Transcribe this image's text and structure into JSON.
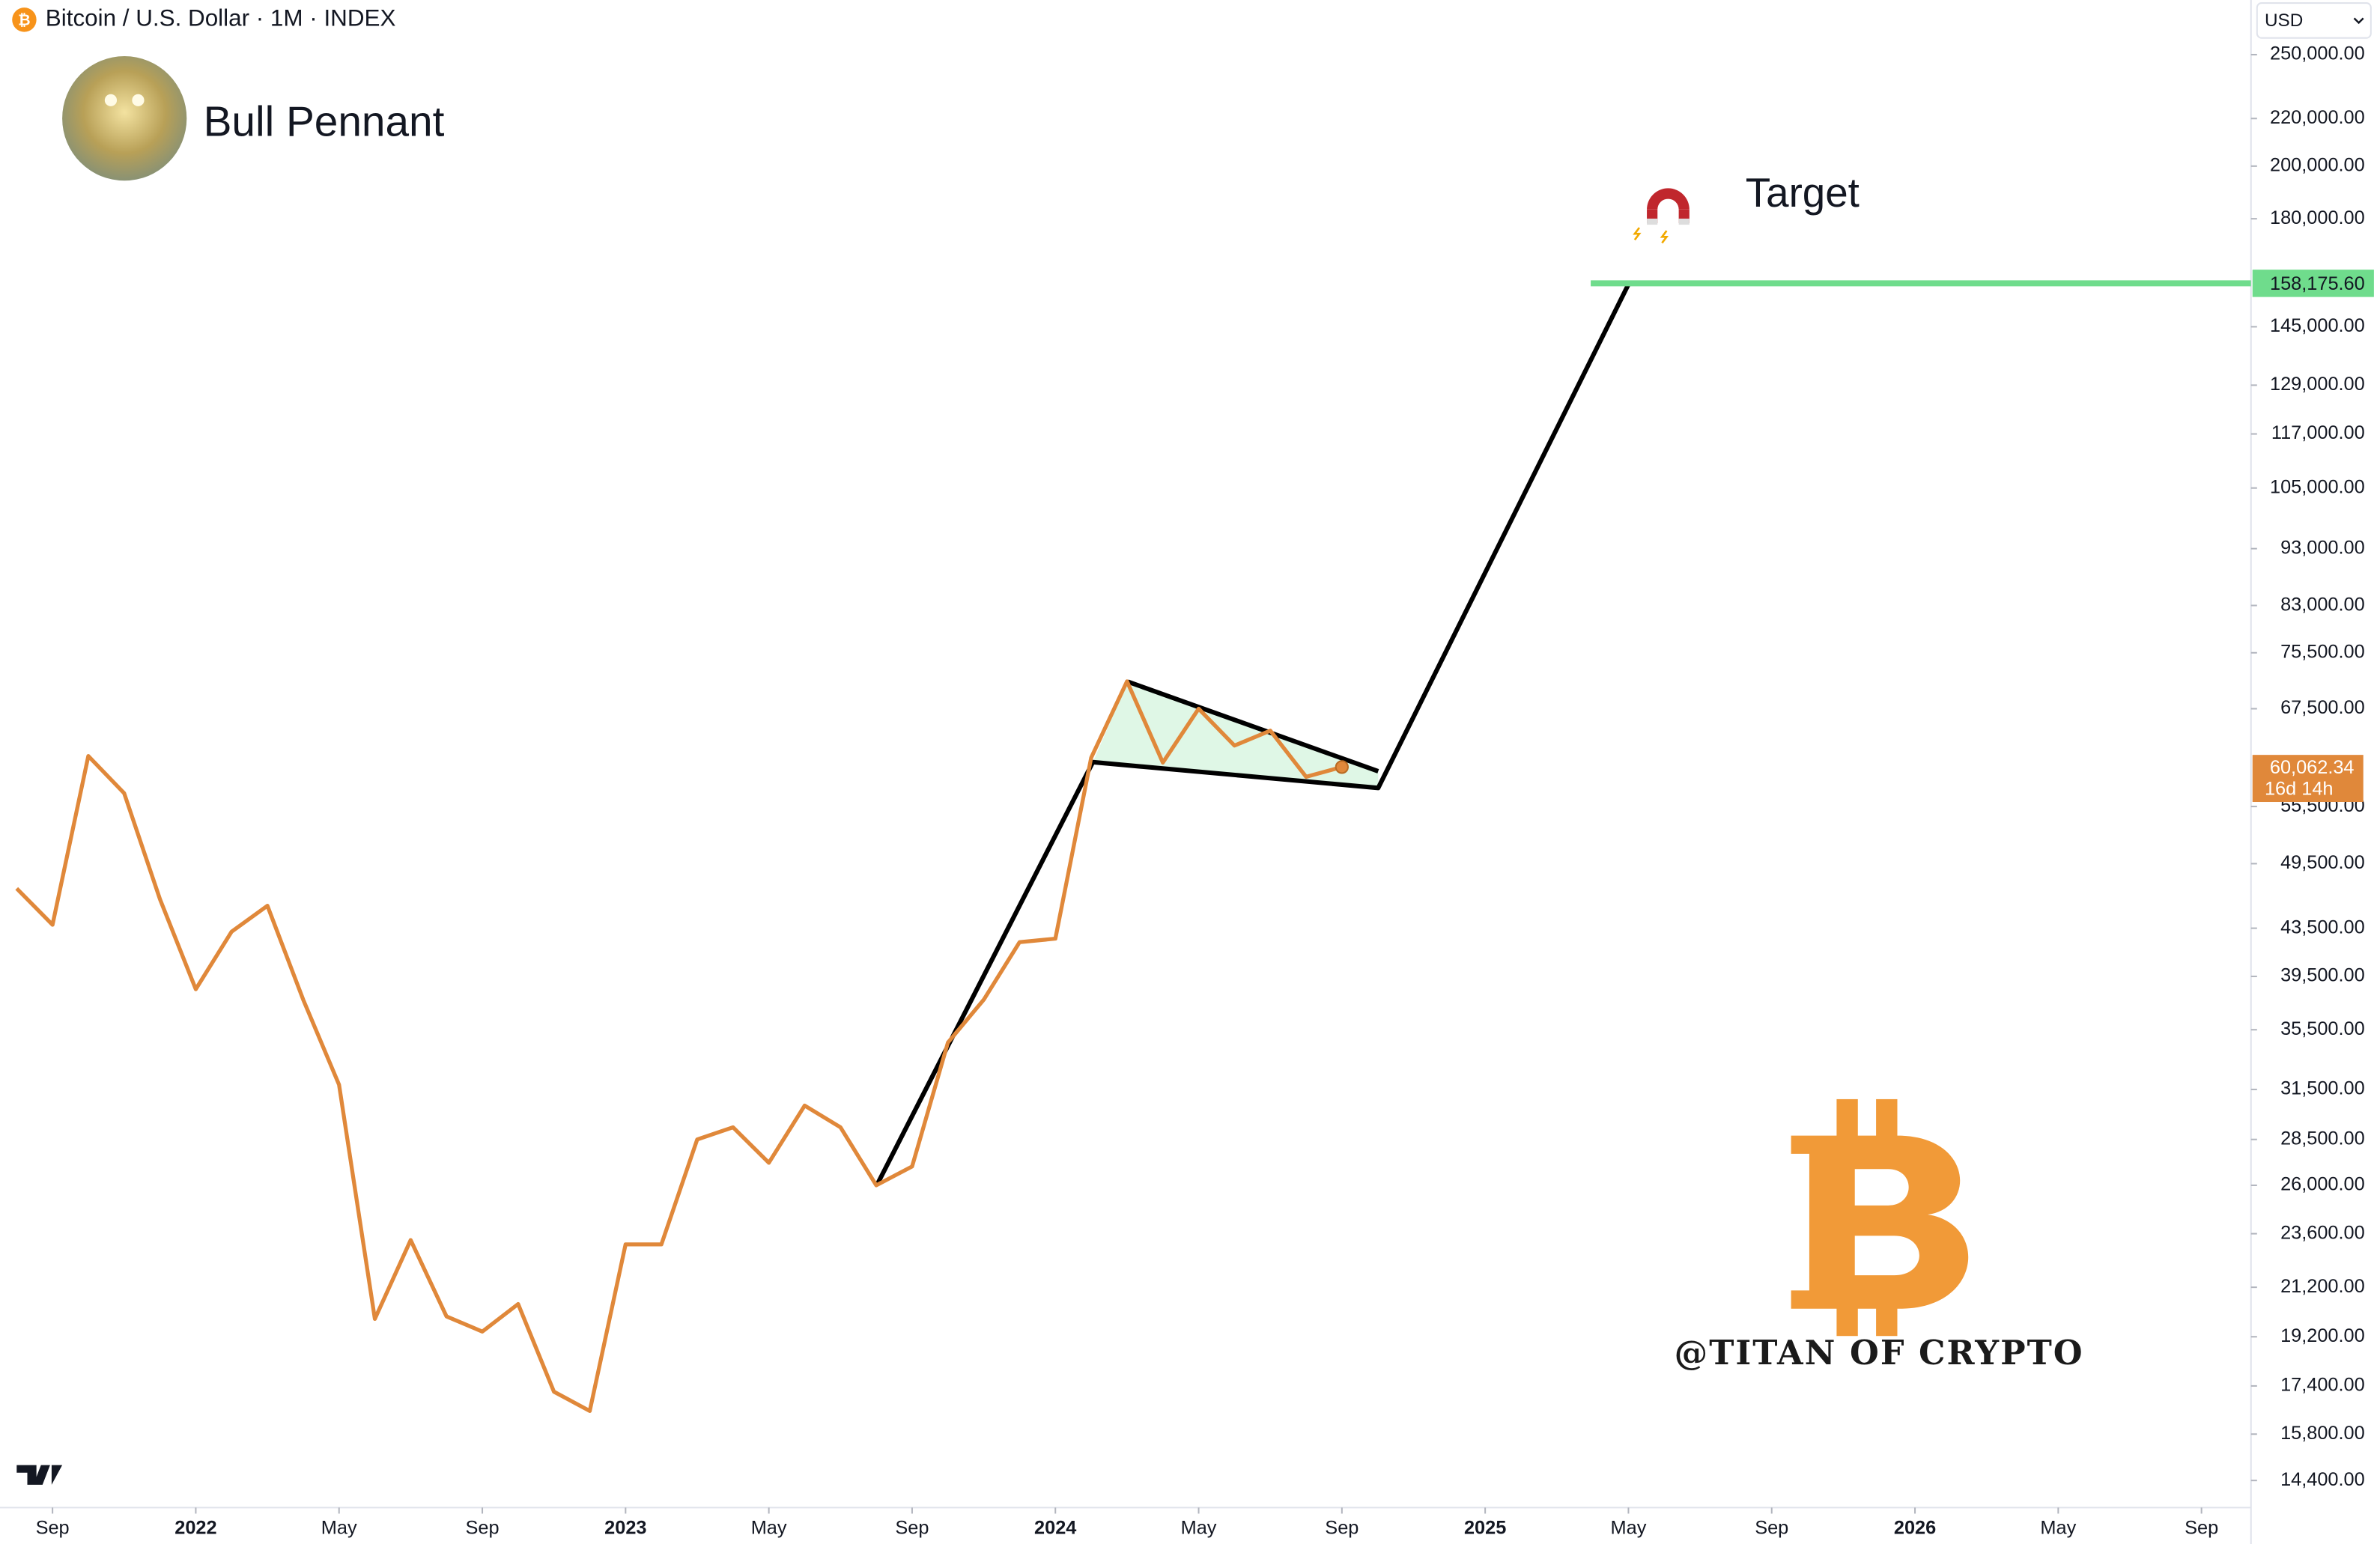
{
  "chart_data": {
    "type": "line",
    "title": "Bitcoin / U.S. Dollar · 1M · INDEX",
    "currency": "USD",
    "annotations": {
      "pattern": "Bull Pennant",
      "target": "Target",
      "watermark": "@TITAN OF CRYPTO"
    },
    "log_scale": true,
    "color": "#e0883a",
    "x": [
      "2021-08",
      "2021-09",
      "2021-10",
      "2021-11",
      "2021-12",
      "2022-01",
      "2022-02",
      "2022-03",
      "2022-04",
      "2022-05",
      "2022-06",
      "2022-07",
      "2022-08",
      "2022-09",
      "2022-10",
      "2022-11",
      "2022-12",
      "2023-01",
      "2023-02",
      "2023-03",
      "2023-04",
      "2023-05",
      "2023-06",
      "2023-07",
      "2023-08",
      "2023-09",
      "2023-10",
      "2023-11",
      "2023-12",
      "2024-01",
      "2024-02",
      "2024-03",
      "2024-04",
      "2024-05",
      "2024-06",
      "2024-07",
      "2024-08",
      "2024-09"
    ],
    "values": [
      47100,
      43800,
      61400,
      57000,
      46100,
      38500,
      43200,
      45500,
      37700,
      31800,
      19900,
      23300,
      20000,
      19400,
      20500,
      17200,
      16550,
      23100,
      23100,
      28500,
      29200,
      27200,
      30500,
      29200,
      26000,
      27000,
      34600,
      37700,
      42300,
      42600,
      61200,
      71300,
      60600,
      67500,
      62700,
      64600,
      58900,
      60062.34
    ],
    "xlim": [
      "2021-08",
      "2026-10"
    ],
    "xticks": [
      {
        "value": "2021-09",
        "label": "Sep"
      },
      {
        "value": "2022-01",
        "label": "2022"
      },
      {
        "value": "2022-05",
        "label": "May"
      },
      {
        "value": "2022-09",
        "label": "Sep"
      },
      {
        "value": "2023-01",
        "label": "2023"
      },
      {
        "value": "2023-05",
        "label": "May"
      },
      {
        "value": "2023-09",
        "label": "Sep"
      },
      {
        "value": "2024-01",
        "label": "2024"
      },
      {
        "value": "2024-05",
        "label": "May"
      },
      {
        "value": "2024-09",
        "label": "Sep"
      },
      {
        "value": "2025-01",
        "label": "2025"
      },
      {
        "value": "2025-05",
        "label": "May"
      },
      {
        "value": "2025-09",
        "label": "Sep"
      },
      {
        "value": "2026-01",
        "label": "2026"
      },
      {
        "value": "2026-05",
        "label": "May"
      },
      {
        "value": "2026-09",
        "label": "Sep"
      }
    ],
    "ylim": [
      13640,
      278900
    ],
    "yticks": [
      {
        "value": 250000,
        "label": "250,000.00"
      },
      {
        "value": 220000,
        "label": "220,000.00"
      },
      {
        "value": 200000,
        "label": "200,000.00"
      },
      {
        "value": 180000,
        "label": "180,000.00"
      },
      {
        "value": 145000,
        "label": "145,000.00"
      },
      {
        "value": 129000,
        "label": "129,000.00"
      },
      {
        "value": 117000,
        "label": "117,000.00"
      },
      {
        "value": 105000,
        "label": "105,000.00"
      },
      {
        "value": 93000,
        "label": "93,000.00"
      },
      {
        "value": 83000,
        "label": "83,000.00"
      },
      {
        "value": 75500,
        "label": "75,500.00"
      },
      {
        "value": 67500,
        "label": "67,500.00"
      },
      {
        "value": 55500,
        "label": "55,500.00"
      },
      {
        "value": 49500,
        "label": "49,500.00"
      },
      {
        "value": 43500,
        "label": "43,500.00"
      },
      {
        "value": 39500,
        "label": "39,500.00"
      },
      {
        "value": 35500,
        "label": "35,500.00"
      },
      {
        "value": 31500,
        "label": "31,500.00"
      },
      {
        "value": 28500,
        "label": "28,500.00"
      },
      {
        "value": 26000,
        "label": "26,000.00"
      },
      {
        "value": 23600,
        "label": "23,600.00"
      },
      {
        "value": 21200,
        "label": "21,200.00"
      },
      {
        "value": 19200,
        "label": "19,200.00"
      },
      {
        "value": 17400,
        "label": "17,400.00"
      },
      {
        "value": 15800,
        "label": "15,800.00"
      },
      {
        "value": 14400,
        "label": "14,400.00"
      }
    ],
    "target_line": {
      "value": 158175.6,
      "label": "158,175.60",
      "color": "#6fdc8c"
    },
    "last_price": {
      "value": 60062.34,
      "label": "60,062.34",
      "countdown": "16d 14h",
      "color": "#e0883a"
    }
  }
}
